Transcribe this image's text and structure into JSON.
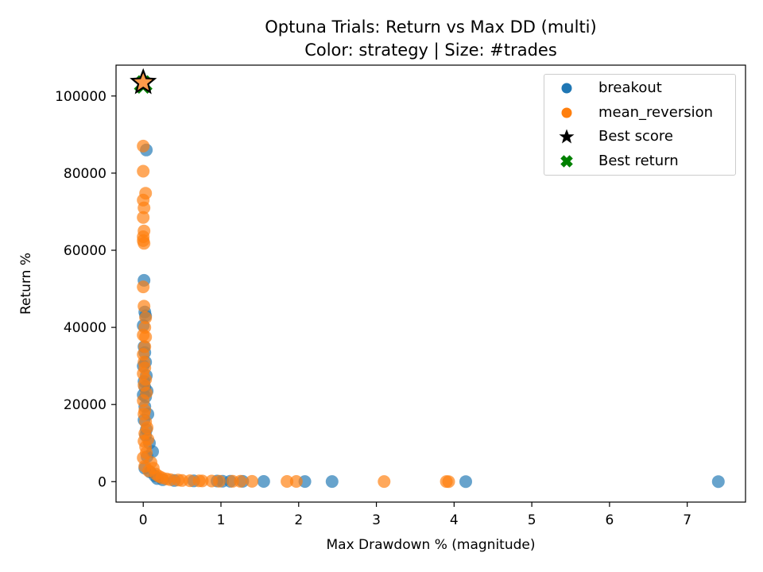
{
  "chart_data": {
    "type": "scatter",
    "title": "Optuna Trials: Return vs Max DD (multi)",
    "subtitle": "Color: strategy | Size: #trades",
    "xlabel": "Max Drawdown % (magnitude)",
    "ylabel": "Return %",
    "xlim": [
      -0.35,
      7.75
    ],
    "ylim": [
      -5300,
      108000
    ],
    "xticks": [
      0,
      1,
      2,
      3,
      4,
      5,
      6,
      7
    ],
    "yticks": [
      0,
      20000,
      40000,
      60000,
      80000,
      100000
    ],
    "grid": false,
    "legend_position": "top-right",
    "series": [
      {
        "name": "breakout",
        "color": "#1f77b4",
        "points": [
          [
            0.04,
            86000
          ],
          [
            0.01,
            52200
          ],
          [
            0.02,
            44000
          ],
          [
            0.03,
            43000
          ],
          [
            0.0,
            40500
          ],
          [
            0.01,
            35000
          ],
          [
            0.02,
            33500
          ],
          [
            0.03,
            31000
          ],
          [
            0.0,
            30000
          ],
          [
            0.04,
            27500
          ],
          [
            0.01,
            26000
          ],
          [
            0.02,
            24500
          ],
          [
            0.05,
            23500
          ],
          [
            0.0,
            22500
          ],
          [
            0.03,
            22000
          ],
          [
            0.02,
            19500
          ],
          [
            0.06,
            17500
          ],
          [
            0.01,
            16000
          ],
          [
            0.04,
            13500
          ],
          [
            0.03,
            12000
          ],
          [
            0.08,
            10000
          ],
          [
            0.12,
            7800
          ],
          [
            0.05,
            6500
          ],
          [
            0.02,
            3500
          ],
          [
            0.09,
            2500
          ],
          [
            0.15,
            1500
          ],
          [
            0.18,
            800
          ],
          [
            0.25,
            500
          ],
          [
            0.4,
            300
          ],
          [
            0.65,
            200
          ],
          [
            0.95,
            150
          ],
          [
            1.02,
            120
          ],
          [
            1.12,
            100
          ],
          [
            1.28,
            80
          ],
          [
            1.55,
            60
          ],
          [
            2.08,
            40
          ],
          [
            2.43,
            30
          ],
          [
            4.15,
            20
          ],
          [
            7.4,
            10
          ]
        ]
      },
      {
        "name": "mean_reversion",
        "color": "#ff7f0e",
        "points": [
          [
            0.0,
            87000
          ],
          [
            0.0,
            80500
          ],
          [
            0.03,
            74800
          ],
          [
            0.0,
            73000
          ],
          [
            0.01,
            71000
          ],
          [
            0.0,
            68500
          ],
          [
            0.01,
            65000
          ],
          [
            0.0,
            63500
          ],
          [
            0.0,
            62500
          ],
          [
            0.01,
            61800
          ],
          [
            0.0,
            50500
          ],
          [
            0.01,
            45500
          ],
          [
            0.03,
            42500
          ],
          [
            0.02,
            40000
          ],
          [
            0.0,
            38000
          ],
          [
            0.03,
            37500
          ],
          [
            0.02,
            35000
          ],
          [
            0.0,
            33000
          ],
          [
            0.01,
            31000
          ],
          [
            0.02,
            29500
          ],
          [
            0.0,
            28000
          ],
          [
            0.03,
            26500
          ],
          [
            0.01,
            25000
          ],
          [
            0.04,
            23000
          ],
          [
            0.0,
            21000
          ],
          [
            0.02,
            18500
          ],
          [
            0.01,
            17500
          ],
          [
            0.03,
            15500
          ],
          [
            0.05,
            14000
          ],
          [
            0.02,
            12500
          ],
          [
            0.06,
            11000
          ],
          [
            0.01,
            10500
          ],
          [
            0.03,
            9000
          ],
          [
            0.04,
            7500
          ],
          [
            0.0,
            6200
          ],
          [
            0.1,
            5000
          ],
          [
            0.02,
            4000
          ],
          [
            0.13,
            3500
          ],
          [
            0.07,
            2800
          ],
          [
            0.16,
            2000
          ],
          [
            0.2,
            1400
          ],
          [
            0.24,
            1000
          ],
          [
            0.3,
            700
          ],
          [
            0.35,
            500
          ],
          [
            0.45,
            400
          ],
          [
            0.5,
            300
          ],
          [
            0.6,
            250
          ],
          [
            0.72,
            200
          ],
          [
            0.76,
            180
          ],
          [
            0.88,
            150
          ],
          [
            0.98,
            120
          ],
          [
            1.15,
            100
          ],
          [
            1.25,
            90
          ],
          [
            1.4,
            80
          ],
          [
            1.85,
            60
          ],
          [
            1.97,
            50
          ],
          [
            3.1,
            40
          ],
          [
            3.9,
            30
          ],
          [
            3.93,
            25
          ]
        ]
      }
    ],
    "best_score": {
      "name": "Best score",
      "x": 0.0,
      "y": 103500,
      "color": "#000000"
    },
    "best_return": {
      "name": "Best return",
      "x": 0.0,
      "y": 103000,
      "color": "#008000"
    }
  }
}
